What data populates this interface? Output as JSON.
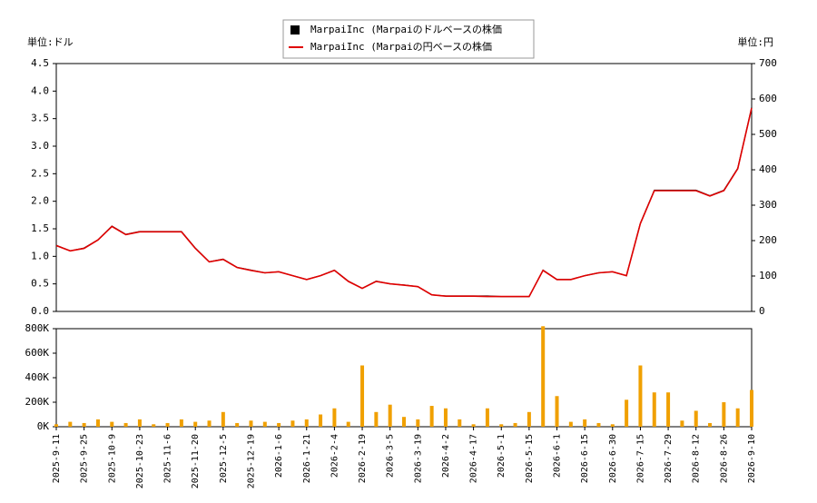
{
  "chart_data": {
    "type": "line",
    "ylabel": "単位:ドル",
    "y2label": "単位:円",
    "ylim": [
      0,
      4.5
    ],
    "yticks": [
      {
        "value": 0,
        "label": "0.0"
      },
      0.5,
      {
        "value": 1,
        "label": "1.0"
      },
      1.5,
      {
        "value": 2,
        "label": "2.0"
      },
      2.5,
      {
        "value": 3,
        "label": "3.0"
      },
      3.5,
      {
        "value": 4,
        "label": "4.0"
      },
      4.5
    ],
    "y2lim": [
      0,
      700
    ],
    "y2ticks": [
      0,
      100,
      200,
      300,
      400,
      500,
      600,
      700
    ],
    "categories": [
      "2025-9-11",
      null,
      "2025-9-25",
      null,
      "2025-10-9",
      null,
      "2025-10-23",
      null,
      "2025-11-6",
      null,
      "2025-11-20",
      null,
      "2025-12-5",
      null,
      "2025-12-19",
      null,
      "2026-1-6",
      null,
      "2026-1-21",
      null,
      "2026-2-4",
      null,
      "2026-2-19",
      null,
      "2026-3-5",
      null,
      "2026-3-19",
      null,
      "2026-4-2",
      null,
      "2026-4-17",
      null,
      "2026-5-1",
      null,
      "2026-5-15",
      null,
      "2026-6-1",
      null,
      "2026-6-15",
      null,
      "2026-6-30",
      null,
      "2026-7-15",
      null,
      "2026-7-29",
      null,
      "2026-8-12",
      null,
      "2026-8-26",
      null,
      "2026-9-10"
    ],
    "series": [
      {
        "name": "MarpaiInc (Marpaiのドルベースの株価",
        "color": "#000000",
        "axis": "y",
        "values": [
          1.2,
          1.1,
          1.15,
          1.3,
          1.55,
          1.4,
          1.45,
          1.45,
          1.45,
          1.45,
          1.15,
          0.9,
          0.95,
          0.8,
          0.75,
          0.7,
          0.72,
          0.65,
          0.58,
          0.65,
          0.75,
          0.55,
          0.42,
          0.55,
          0.5,
          0.48,
          0.45,
          0.3,
          0.28,
          0.28,
          0.28,
          0.28,
          0.27,
          0.27,
          0.27,
          0.75,
          0.58,
          0.58,
          0.65,
          0.7,
          0.72,
          0.65,
          1.6,
          2.2,
          2.2,
          2.2,
          2.2,
          2.1,
          2.2,
          2.6,
          3.7
        ]
      },
      {
        "name": "MarpaiInc (Marpaiの円ベースの株価",
        "color": "#e00000",
        "axis": "y2",
        "values": [
          186,
          171,
          178,
          202,
          240,
          217,
          225,
          225,
          225,
          225,
          178,
          140,
          147,
          124,
          116,
          109,
          112,
          101,
          90,
          101,
          116,
          85,
          65,
          85,
          78,
          74,
          70,
          47,
          43,
          43,
          43,
          42,
          42,
          42,
          42,
          116,
          90,
          90,
          101,
          109,
          112,
          101,
          248,
          341,
          341,
          341,
          341,
          326,
          341,
          403,
          574
        ]
      }
    ],
    "volume": {
      "type": "bar",
      "color": "#f0a000",
      "ylim": [
        0,
        800000
      ],
      "yticks": [
        {
          "value": 0,
          "label": "0K"
        },
        {
          "value": 200000,
          "label": "200K"
        },
        {
          "value": 400000,
          "label": "400K"
        },
        {
          "value": 600000,
          "label": "600K"
        },
        {
          "value": 800000,
          "label": "800K"
        }
      ],
      "values": [
        20000,
        40000,
        30000,
        60000,
        40000,
        30000,
        60000,
        20000,
        30000,
        60000,
        40000,
        50000,
        120000,
        30000,
        50000,
        40000,
        30000,
        50000,
        60000,
        100000,
        150000,
        40000,
        500000,
        120000,
        180000,
        80000,
        60000,
        170000,
        150000,
        60000,
        20000,
        150000,
        20000,
        30000,
        120000,
        820000,
        250000,
        40000,
        60000,
        30000,
        20000,
        220000,
        500000,
        280000,
        280000,
        50000,
        130000,
        30000,
        200000,
        150000,
        300000
      ]
    }
  }
}
